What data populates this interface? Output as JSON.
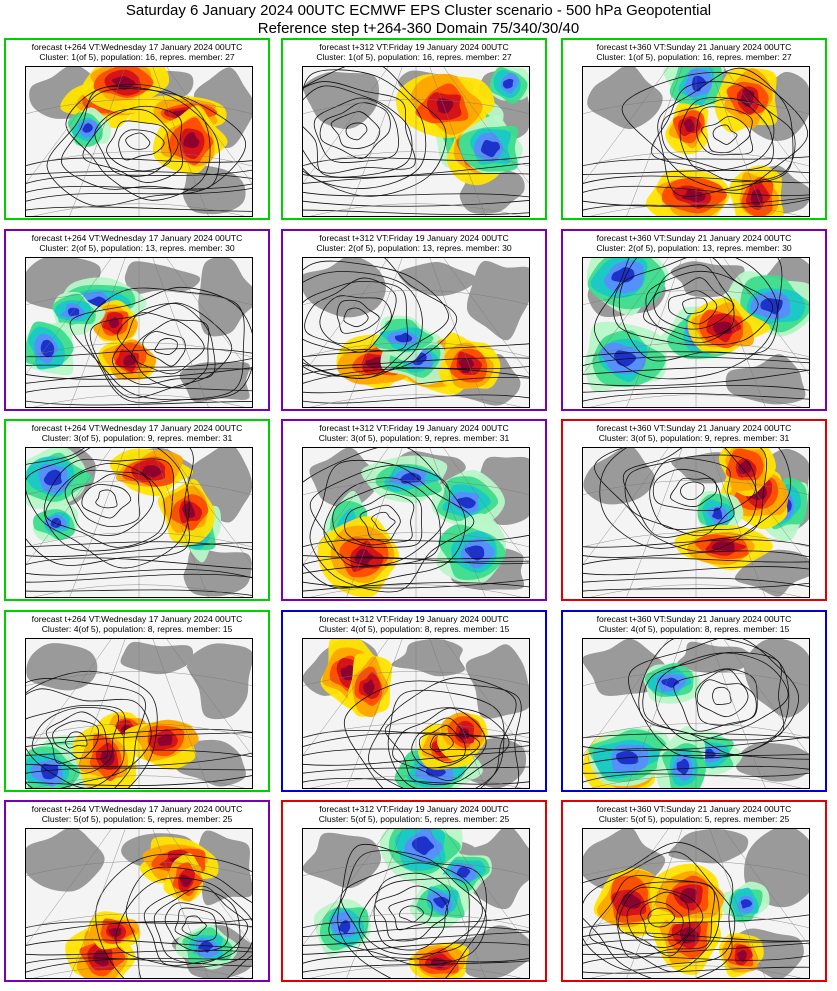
{
  "header": {
    "line1": "Saturday 6 January 2024 00UTC ECMWF EPS Cluster scenario - 500 hPa Geopotential",
    "line2": "Reference step t+264-360 Domain 75/340/30/40"
  },
  "colors": {
    "green": "#00d000",
    "purple": "#7a00b8",
    "blue": "#0000d0",
    "red": "#e00000"
  },
  "clusters": [
    {
      "label": "Cluster: 1(of 5), population: 16, repres. member: 27",
      "panels": [
        {
          "forecast": "forecast t+264 VT:Wednesday 17 January 2024 00UTC",
          "regime": "green"
        },
        {
          "forecast": "forecast t+312 VT:Friday 19 January 2024 00UTC",
          "regime": "green"
        },
        {
          "forecast": "forecast t+360 VT:Sunday 21 January 2024 00UTC",
          "regime": "green"
        }
      ]
    },
    {
      "label": "Cluster: 2(of 5), population: 13, repres. member: 30",
      "panels": [
        {
          "forecast": "forecast t+264 VT:Wednesday 17 January 2024 00UTC",
          "regime": "purple"
        },
        {
          "forecast": "forecast t+312 VT:Friday 19 January 2024 00UTC",
          "regime": "purple"
        },
        {
          "forecast": "forecast t+360 VT:Sunday 21 January 2024 00UTC",
          "regime": "purple"
        }
      ]
    },
    {
      "label": "Cluster: 3(of 5), population: 9, repres. member: 31",
      "panels": [
        {
          "forecast": "forecast t+264 VT:Wednesday 17 January 2024 00UTC",
          "regime": "green"
        },
        {
          "forecast": "forecast t+312 VT:Friday 19 January 2024 00UTC",
          "regime": "purple"
        },
        {
          "forecast": "forecast t+360 VT:Sunday 21 January 2024 00UTC",
          "regime": "red"
        }
      ]
    },
    {
      "label": "Cluster: 4(of 5), population: 8, repres. member: 15",
      "panels": [
        {
          "forecast": "forecast t+264 VT:Wednesday 17 January 2024 00UTC",
          "regime": "green"
        },
        {
          "forecast": "forecast t+312 VT:Friday 19 January 2024 00UTC",
          "regime": "blue"
        },
        {
          "forecast": "forecast t+360 VT:Sunday 21 January 2024 00UTC",
          "regime": "blue"
        }
      ]
    },
    {
      "label": "Cluster: 5(of 5), population: 5, repres. member: 25",
      "panels": [
        {
          "forecast": "forecast t+264 VT:Wednesday 17 January 2024 00UTC",
          "regime": "purple"
        },
        {
          "forecast": "forecast t+312 VT:Friday 19 January 2024 00UTC",
          "regime": "red"
        },
        {
          "forecast": "forecast t+360 VT:Sunday 21 January 2024 00UTC",
          "regime": "red"
        }
      ]
    }
  ]
}
